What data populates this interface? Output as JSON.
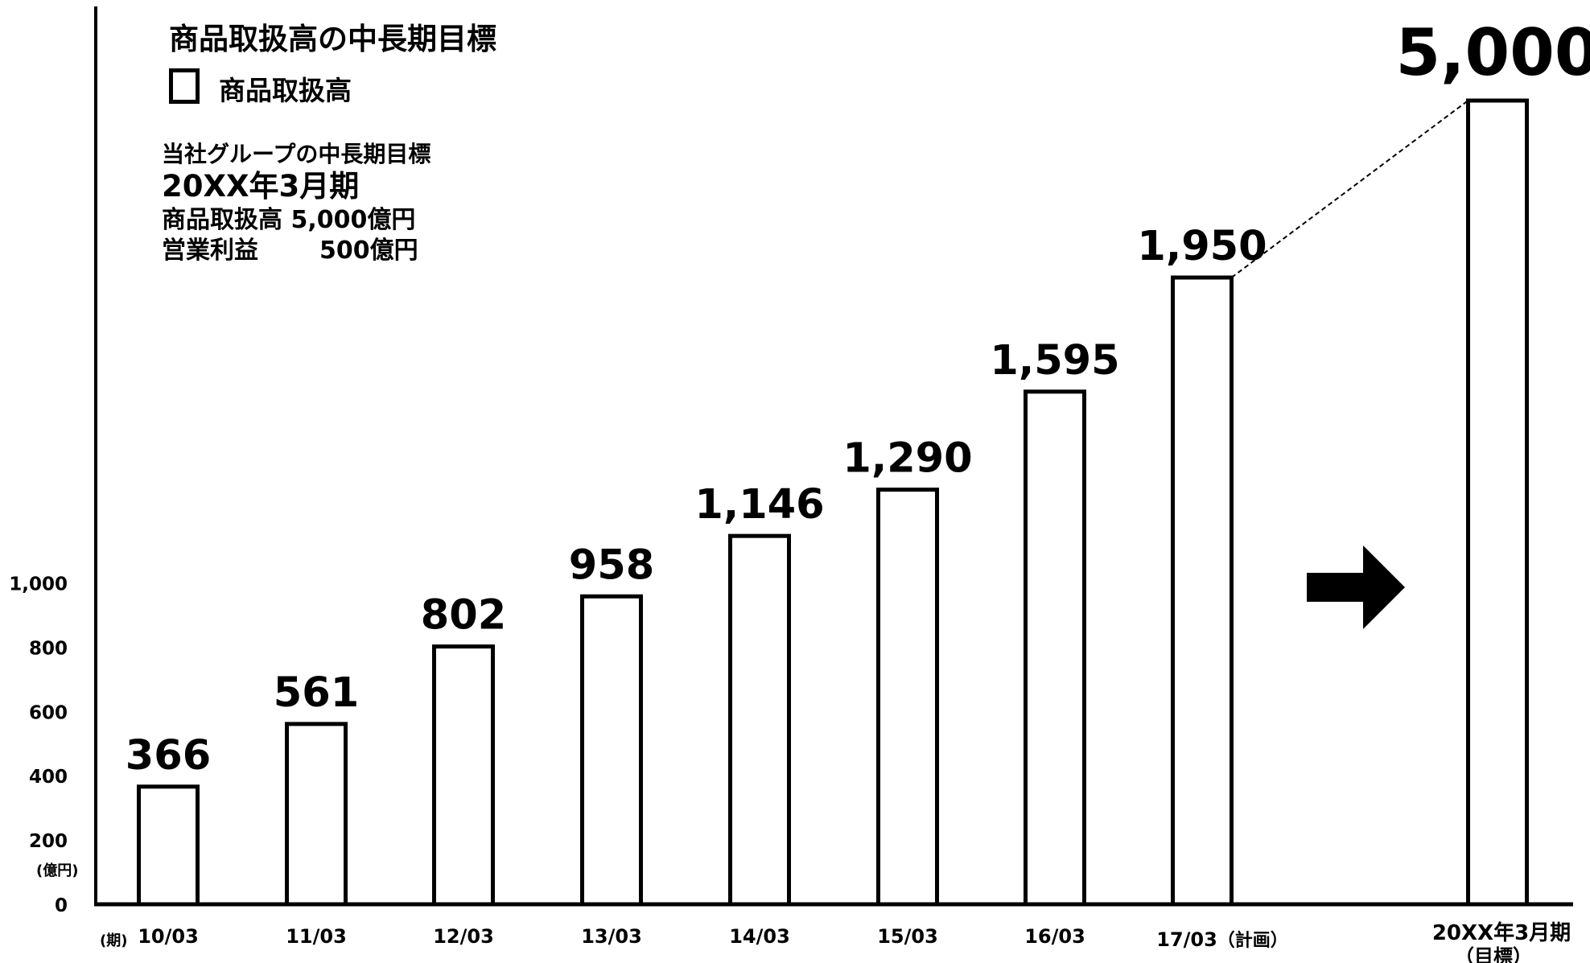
{
  "chart_data": {
    "type": "bar",
    "title": "商品取扱高の中長期目標",
    "legend": [
      "商品取扱高"
    ],
    "categories": [
      "10/03",
      "11/03",
      "12/03",
      "13/03",
      "14/03",
      "15/03",
      "16/03",
      "17/03（計画）",
      "20XX年3月期（目標）"
    ],
    "values": [
      366,
      561,
      802,
      958,
      1146,
      1290,
      1595,
      1950,
      5000
    ],
    "value_labels": [
      "366",
      "561",
      "802",
      "958",
      "1,146",
      "1,290",
      "1,595",
      "1,950",
      "5,000"
    ],
    "xlabel": "(期)",
    "ylabel": "(億円)",
    "yticks": [
      0,
      200,
      400,
      600,
      800,
      1000
    ],
    "ytick_labels": [
      "0",
      "200",
      "400",
      "600",
      "800",
      "1,000"
    ],
    "ylim": [
      0,
      1000
    ],
    "grid": false,
    "legend_position": "top-left",
    "colors": {
      "bar_fill": "#ffffff",
      "bar_stroke": "#000000",
      "text": "#000000"
    }
  },
  "target_note": {
    "line1": "当社グループの中長期目標",
    "line2": "20XX年3月期",
    "line3": "商品取扱高 5,000億円",
    "line4_label": "営業利益",
    "line4_value": "500億円"
  },
  "arrow_icon": "right-arrow-icon"
}
